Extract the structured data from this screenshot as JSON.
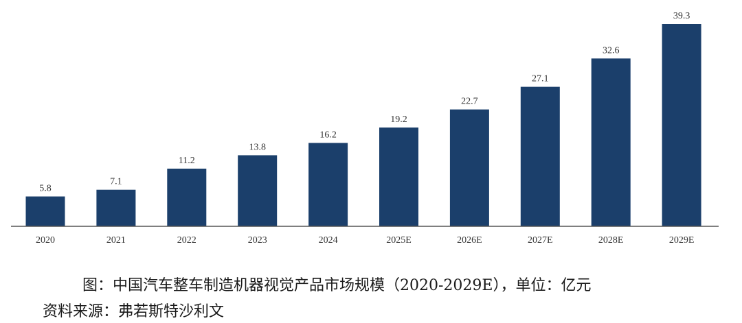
{
  "chart_data": {
    "type": "bar",
    "title": "",
    "xlabel": "",
    "ylabel": "",
    "categories": [
      "2020",
      "2021",
      "2022",
      "2023",
      "2024",
      "2025E",
      "2026E",
      "2027E",
      "2028E",
      "2029E"
    ],
    "values": [
      5.8,
      7.1,
      11.2,
      13.8,
      16.2,
      19.2,
      22.7,
      27.1,
      32.6,
      39.3
    ],
    "value_labels": [
      "5.8",
      "7.1",
      "11.2",
      "13.8",
      "16.2",
      "19.2",
      "22.7",
      "27.1",
      "32.6",
      "39.3"
    ],
    "ylim": [
      0,
      39.3
    ],
    "grid": false,
    "legend": "none",
    "bar_color": "#1b3f6b",
    "axis_color": "#555555"
  },
  "caption": "图：中国汽车整车制造机器视觉产品市场规模（2020-2029E），单位：亿元",
  "source": "资料来源：弗若斯特沙利文"
}
